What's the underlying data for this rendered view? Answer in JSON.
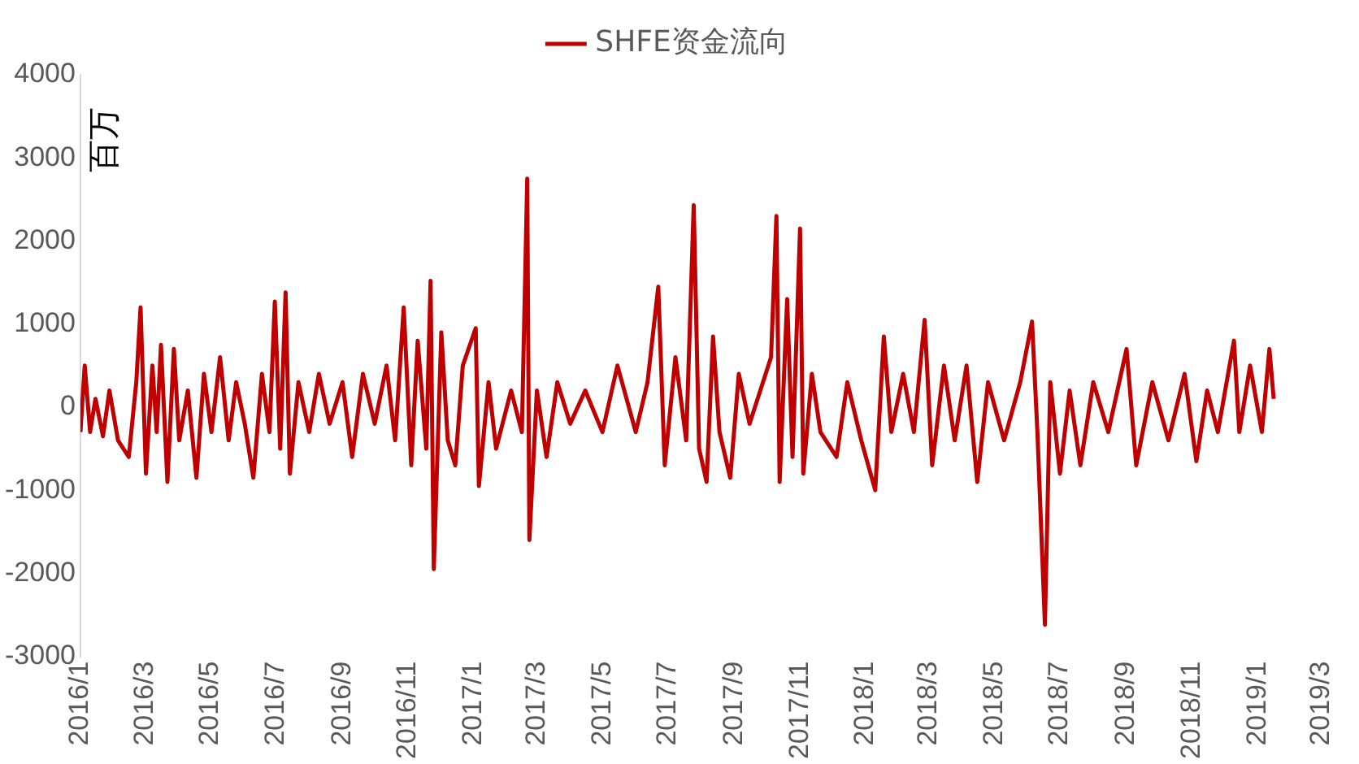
{
  "chart_data": {
    "type": "line",
    "ylabel": "百万",
    "legend": "top",
    "grid": false,
    "marker": "none",
    "line_style": "solid",
    "xlim": [
      "2016-01",
      "2019-03"
    ],
    "xticks": [
      {
        "value": "2016-01",
        "label": "2016/1"
      },
      {
        "value": "2016-03",
        "label": "2016/3"
      },
      {
        "value": "2016-05",
        "label": "2016/5"
      },
      {
        "value": "2016-07",
        "label": "2016/7"
      },
      {
        "value": "2016-09",
        "label": "2016/9"
      },
      {
        "value": "2016-11",
        "label": "2016/11"
      },
      {
        "value": "2017-01",
        "label": "2017/1"
      },
      {
        "value": "2017-03",
        "label": "2017/3"
      },
      {
        "value": "2017-05",
        "label": "2017/5"
      },
      {
        "value": "2017-07",
        "label": "2017/7"
      },
      {
        "value": "2017-09",
        "label": "2017/9"
      },
      {
        "value": "2017-11",
        "label": "2017/11"
      },
      {
        "value": "2018-01",
        "label": "2018/1"
      },
      {
        "value": "2018-03",
        "label": "2018/3"
      },
      {
        "value": "2018-05",
        "label": "2018/5"
      },
      {
        "value": "2018-07",
        "label": "2018/7"
      },
      {
        "value": "2018-09",
        "label": "2018/9"
      },
      {
        "value": "2018-11",
        "label": "2018/11"
      },
      {
        "value": "2019-01",
        "label": "2019/1"
      },
      {
        "value": "2019-03",
        "label": "2019/3"
      }
    ],
    "ylim": [
      -3000,
      4000
    ],
    "yticks": [
      -3000,
      -2000,
      -1000,
      0,
      1000,
      2000,
      3000,
      4000
    ],
    "x": [
      "2016-01-01",
      "2016-01-05",
      "2016-01-10",
      "2016-01-15",
      "2016-01-22",
      "2016-01-28",
      "2016-02-05",
      "2016-02-15",
      "2016-02-22",
      "2016-02-26",
      "2016-03-02",
      "2016-03-08",
      "2016-03-12",
      "2016-03-16",
      "2016-03-22",
      "2016-03-28",
      "2016-04-02",
      "2016-04-10",
      "2016-04-18",
      "2016-04-25",
      "2016-05-02",
      "2016-05-10",
      "2016-05-18",
      "2016-05-25",
      "2016-06-02",
      "2016-06-10",
      "2016-06-18",
      "2016-06-25",
      "2016-06-30",
      "2016-07-05",
      "2016-07-10",
      "2016-07-14",
      "2016-07-22",
      "2016-08-01",
      "2016-08-10",
      "2016-08-20",
      "2016-09-01",
      "2016-09-10",
      "2016-09-20",
      "2016-10-01",
      "2016-10-12",
      "2016-10-20",
      "2016-10-28",
      "2016-11-04",
      "2016-11-10",
      "2016-11-18",
      "2016-11-22",
      "2016-11-25",
      "2016-12-02",
      "2016-12-08",
      "2016-12-15",
      "2016-12-22",
      "2017-01-03",
      "2017-01-06",
      "2017-01-15",
      "2017-01-22",
      "2017-02-05",
      "2017-02-15",
      "2017-02-20",
      "2017-02-22",
      "2017-03-01",
      "2017-03-10",
      "2017-03-20",
      "2017-04-01",
      "2017-04-15",
      "2017-05-01",
      "2017-05-15",
      "2017-06-01",
      "2017-06-12",
      "2017-06-22",
      "2017-06-28",
      "2017-07-08",
      "2017-07-18",
      "2017-07-25",
      "2017-07-30",
      "2017-08-06",
      "2017-08-12",
      "2017-08-18",
      "2017-08-28",
      "2017-09-05",
      "2017-09-15",
      "2017-09-25",
      "2017-10-05",
      "2017-10-10",
      "2017-10-13",
      "2017-10-20",
      "2017-10-25",
      "2017-11-01",
      "2017-11-04",
      "2017-11-12",
      "2017-11-20",
      "2017-12-05",
      "2017-12-15",
      "2017-12-28",
      "2018-01-10",
      "2018-01-18",
      "2018-01-25",
      "2018-02-05",
      "2018-02-15",
      "2018-02-25",
      "2018-03-04",
      "2018-03-15",
      "2018-03-25",
      "2018-04-05",
      "2018-04-15",
      "2018-04-25",
      "2018-05-10",
      "2018-05-25",
      "2018-06-05",
      "2018-06-10",
      "2018-06-17",
      "2018-06-22",
      "2018-07-01",
      "2018-07-10",
      "2018-07-20",
      "2018-08-01",
      "2018-08-15",
      "2018-09-01",
      "2018-09-10",
      "2018-09-25",
      "2018-10-10",
      "2018-10-25",
      "2018-11-05",
      "2018-11-15",
      "2018-11-25",
      "2018-12-10",
      "2018-12-15",
      "2018-12-25",
      "2019-01-05",
      "2019-01-12",
      "2019-01-16"
    ],
    "series": [
      {
        "name": "SHFE资金流向",
        "color": "#c00000",
        "values": [
          -300,
          500,
          -300,
          100,
          -350,
          200,
          -400,
          -600,
          300,
          1200,
          -800,
          500,
          -300,
          750,
          -900,
          700,
          -400,
          200,
          -850,
          400,
          -300,
          600,
          -400,
          300,
          -200,
          -850,
          400,
          -300,
          1270,
          -500,
          1380,
          -800,
          300,
          -300,
          400,
          -200,
          300,
          -600,
          400,
          -200,
          500,
          -400,
          1200,
          -700,
          800,
          -500,
          1520,
          -1950,
          900,
          -400,
          -700,
          500,
          950,
          -950,
          300,
          -500,
          200,
          -300,
          2750,
          -1600,
          200,
          -600,
          300,
          -200,
          200,
          -300,
          500,
          -300,
          300,
          1450,
          -700,
          600,
          -400,
          2430,
          -500,
          -900,
          850,
          -300,
          -850,
          400,
          -200,
          200,
          600,
          2300,
          -900,
          1300,
          -600,
          2150,
          -800,
          400,
          -300,
          -600,
          300,
          -400,
          -1000,
          850,
          -300,
          400,
          -300,
          1050,
          -700,
          500,
          -400,
          500,
          -900,
          300,
          -400,
          300,
          1030,
          -300,
          -2620,
          300,
          -800,
          200,
          -700,
          300,
          -300,
          700,
          -700,
          300,
          -400,
          400,
          -650,
          200,
          -300,
          800,
          -300,
          500,
          -300,
          700,
          100
        ]
      }
    ]
  }
}
